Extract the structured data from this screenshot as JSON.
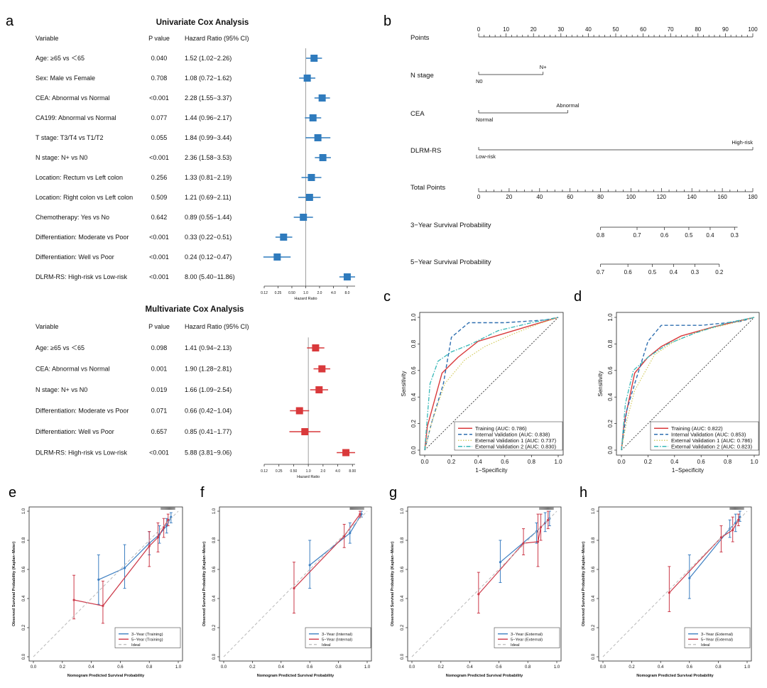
{
  "colors": {
    "univariate": "#2f7bbd",
    "multivariate": "#d9393b",
    "train_line": "#d9393b",
    "internal_line": "#2f6fb0",
    "ext1_line": "#d6cf6a",
    "ext2_line": "#37b8b8",
    "cal3": "#3d7fc2",
    "cal5": "#cc3a4a",
    "ideal": "#b9b9b9"
  },
  "panel_labels": {
    "a": "a",
    "b": "b",
    "c": "c",
    "d": "d",
    "e": "e",
    "f": "f",
    "g": "g",
    "h": "h"
  },
  "chart_data": [
    {
      "id": "a_univariate",
      "type": "forest",
      "title": "Univariate Cox Analysis",
      "headers": {
        "variable": "Variable",
        "p": "P value",
        "hr": "Hazard Ratio (95% CI)"
      },
      "xlabel": "Hazard Ratio",
      "xticks": [
        "0.12",
        "0.25",
        "0.50",
        "1.0",
        "2.0",
        "4.0",
        "8.0"
      ],
      "xtick_values": [
        0.125,
        0.25,
        0.5,
        1,
        2,
        4,
        8
      ],
      "xlim": [
        0.125,
        11.86
      ],
      "log_scale": true,
      "rows": [
        {
          "label": "Age: ≥65 vs ＜65",
          "p": "0.040",
          "hr_text": "1.52 (1.02−2.26)",
          "hr": 1.52,
          "lo": 1.02,
          "hi": 2.26
        },
        {
          "label": "Sex: Male vs Female",
          "p": "0.708",
          "hr_text": "1.08 (0.72−1.62)",
          "hr": 1.08,
          "lo": 0.72,
          "hi": 1.62
        },
        {
          "label": "CEA: Abnormal vs Normal",
          "p": "<0.001",
          "hr_text": "2.28 (1.55−3.37)",
          "hr": 2.28,
          "lo": 1.55,
          "hi": 3.37
        },
        {
          "label": "CA199: Abnormal vs Normal",
          "p": "0.077",
          "hr_text": "1.44 (0.96−2.17)",
          "hr": 1.44,
          "lo": 0.96,
          "hi": 2.17
        },
        {
          "label": "T stage: T3/T4 vs T1/T2",
          "p": "0.055",
          "hr_text": "1.84 (0.99−3.44)",
          "hr": 1.84,
          "lo": 0.99,
          "hi": 3.44
        },
        {
          "label": "N stage: N+ vs N0",
          "p": "<0.001",
          "hr_text": "2.36 (1.58−3.53)",
          "hr": 2.36,
          "lo": 1.58,
          "hi": 3.53
        },
        {
          "label": "Location: Rectum vs Left colon",
          "p": "0.256",
          "hr_text": "1.33 (0.81−2.19)",
          "hr": 1.33,
          "lo": 0.81,
          "hi": 2.19
        },
        {
          "label": "Location: Right colon vs Left colon",
          "p": "0.509",
          "hr_text": "1.21 (0.69−2.11)",
          "hr": 1.21,
          "lo": 0.69,
          "hi": 2.11
        },
        {
          "label": "Chemotherapy: Yes vs No",
          "p": "0.642",
          "hr_text": "0.89 (0.55−1.44)",
          "hr": 0.89,
          "lo": 0.55,
          "hi": 1.44
        },
        {
          "label": "Differentiation: Moderate vs Poor",
          "p": "<0.001",
          "hr_text": "0.33 (0.22−0.51)",
          "hr": 0.33,
          "lo": 0.22,
          "hi": 0.51
        },
        {
          "label": "Differentiation: Well vs Poor",
          "p": "<0.001",
          "hr_text": "0.24 (0.12−0.47)",
          "hr": 0.24,
          "lo": 0.12,
          "hi": 0.47
        },
        {
          "label": "DLRM-RS: High-risk vs Low-risk",
          "p": "<0.001",
          "hr_text": "8.00 (5.40−11.86)",
          "hr": 8.0,
          "lo": 5.4,
          "hi": 11.86
        }
      ]
    },
    {
      "id": "a_multivariate",
      "type": "forest",
      "title": "Multivariate Cox Analysis",
      "headers": {
        "variable": "Variable",
        "p": "P value",
        "hr": "Hazard Ratio (95% CI)"
      },
      "xlabel": "Hazard Ratio",
      "xticks": [
        "0.12",
        "0.25",
        "0.50",
        "1.0",
        "2.0",
        "4.0",
        "8.00"
      ],
      "xtick_values": [
        0.125,
        0.25,
        0.5,
        1,
        2,
        4,
        8
      ],
      "xlim": [
        0.125,
        9.06
      ],
      "log_scale": true,
      "rows": [
        {
          "label": "Age: ≥65 vs ＜65",
          "p": "0.098",
          "hr_text": "1.41 (0.94−2.13)",
          "hr": 1.41,
          "lo": 0.94,
          "hi": 2.13
        },
        {
          "label": "CEA: Abnormal vs Normal",
          "p": "0.001",
          "hr_text": "1.90 (1.28−2.81)",
          "hr": 1.9,
          "lo": 1.28,
          "hi": 2.81
        },
        {
          "label": "N stage: N+ vs N0",
          "p": "0.019",
          "hr_text": "1.66 (1.09−2.54)",
          "hr": 1.66,
          "lo": 1.09,
          "hi": 2.54
        },
        {
          "label": "Differentiation: Moderate vs Poor",
          "p": "0.071",
          "hr_text": "0.66 (0.42−1.04)",
          "hr": 0.66,
          "lo": 0.42,
          "hi": 1.04
        },
        {
          "label": "Differentiation: Well vs Poor",
          "p": "0.657",
          "hr_text": "0.85 (0.41−1.77)",
          "hr": 0.85,
          "lo": 0.41,
          "hi": 1.77
        },
        {
          "label": "DLRM-RS: High-risk vs Low-risk",
          "p": "<0.001",
          "hr_text": "5.88 (3.81−9.06)",
          "hr": 5.88,
          "lo": 3.81,
          "hi": 9.06
        }
      ]
    },
    {
      "id": "b_nomogram",
      "type": "nomogram",
      "points_axis": {
        "label": "Points",
        "range": [
          0,
          100
        ],
        "ticks": [
          "0",
          "10",
          "20",
          "30",
          "40",
          "50",
          "60",
          "70",
          "80",
          "90",
          "100"
        ]
      },
      "variables": [
        {
          "label": "N stage",
          "levels": [
            {
              "name": "N0",
              "points": 0
            },
            {
              "name": "N+",
              "points": 23.5
            }
          ]
        },
        {
          "label": "CEA",
          "levels": [
            {
              "name": "Normal",
              "points": 0
            },
            {
              "name": "Abnormal",
              "points": 32.5
            }
          ]
        },
        {
          "label": "DLRM-RS",
          "levels": [
            {
              "name": "Low-risk",
              "points": 0
            },
            {
              "name": "High-risk",
              "points": 100
            }
          ]
        }
      ],
      "total_axis": {
        "label": "Total Points",
        "range": [
          0,
          180
        ],
        "ticks": [
          "0",
          "20",
          "40",
          "60",
          "80",
          "100",
          "120",
          "140",
          "160",
          "180"
        ]
      },
      "survival_axes": [
        {
          "label": "3−Year Survival Probability",
          "ticks": [
            {
              "text": "0.8",
              "total": 80
            },
            {
              "text": "0.7",
              "total": 104
            },
            {
              "text": "0.6",
              "total": 122
            },
            {
              "text": "0.5",
              "total": 138
            },
            {
              "text": "0.4",
              "total": 152
            },
            {
              "text": "0.3",
              "total": 168
            }
          ],
          "line_range": [
            80,
            170
          ]
        },
        {
          "label": "5−Year Survival Probability",
          "ticks": [
            {
              "text": "0.7",
              "total": 80
            },
            {
              "text": "0.6",
              "total": 98
            },
            {
              "text": "0.5",
              "total": 114
            },
            {
              "text": "0.4",
              "total": 128
            },
            {
              "text": "0.3",
              "total": 142
            },
            {
              "text": "0.2",
              "total": 158
            }
          ],
          "line_range": [
            80,
            158
          ]
        }
      ]
    },
    {
      "id": "c_roc",
      "type": "line",
      "xlabel": "1−Specificity",
      "ylabel": "Sensitivity",
      "xlim": [
        0,
        1
      ],
      "ylim": [
        0,
        1
      ],
      "ticks": [
        "0.0",
        "0.2",
        "0.4",
        "0.6",
        "0.8",
        "1.0"
      ],
      "tick_values": [
        0,
        0.2,
        0.4,
        0.6,
        0.8,
        1.0
      ],
      "legend_position": "bottom-right",
      "series": [
        {
          "name": "Training (AUC: 0.786)",
          "style": "train",
          "x": [
            0,
            0.02,
            0.13,
            0.25,
            0.4,
            0.6,
            0.8,
            1.0
          ],
          "y": [
            0,
            0.18,
            0.58,
            0.7,
            0.82,
            0.88,
            0.94,
            1.0
          ]
        },
        {
          "name": "Internal Validation (AUC: 0.838)",
          "style": "internal",
          "x": [
            0,
            0.05,
            0.14,
            0.2,
            0.33,
            0.6,
            0.9,
            1.0
          ],
          "y": [
            0,
            0.2,
            0.5,
            0.85,
            0.96,
            0.96,
            0.98,
            1.0
          ]
        },
        {
          "name": "External Validation 1 (AUC: 0.737)",
          "style": "ext1",
          "x": [
            0,
            0.05,
            0.15,
            0.3,
            0.45,
            0.65,
            0.85,
            1.0
          ],
          "y": [
            0,
            0.2,
            0.5,
            0.68,
            0.78,
            0.87,
            0.95,
            1.0
          ]
        },
        {
          "name": "External Validation 2 (AUC: 0.830)",
          "style": "ext2",
          "x": [
            0,
            0.04,
            0.1,
            0.2,
            0.35,
            0.55,
            0.8,
            1.0
          ],
          "y": [
            0,
            0.5,
            0.67,
            0.74,
            0.8,
            0.9,
            0.96,
            1.0
          ]
        }
      ]
    },
    {
      "id": "d_roc",
      "type": "line",
      "xlabel": "1−Specificity",
      "ylabel": "Sensitivity",
      "xlim": [
        0,
        1
      ],
      "ylim": [
        0,
        1
      ],
      "ticks": [
        "0.0",
        "0.2",
        "0.4",
        "0.6",
        "0.8",
        "1.0"
      ],
      "tick_values": [
        0,
        0.2,
        0.4,
        0.6,
        0.8,
        1.0
      ],
      "legend_position": "bottom-right",
      "series": [
        {
          "name": "Training (AUC: 0.822)",
          "style": "train",
          "x": [
            0,
            0.02,
            0.1,
            0.2,
            0.3,
            0.45,
            0.7,
            1.0
          ],
          "y": [
            0,
            0.2,
            0.58,
            0.7,
            0.78,
            0.86,
            0.93,
            1.0
          ]
        },
        {
          "name": "Internal Validation (AUC: 0.853)",
          "style": "internal",
          "x": [
            0,
            0.04,
            0.1,
            0.2,
            0.3,
            0.6,
            0.9,
            1.0
          ],
          "y": [
            0,
            0.3,
            0.5,
            0.82,
            0.94,
            0.94,
            0.97,
            1.0
          ]
        },
        {
          "name": "External Validation 1 (AUC: 0.786)",
          "style": "ext1",
          "x": [
            0,
            0.04,
            0.1,
            0.25,
            0.4,
            0.6,
            0.85,
            1.0
          ],
          "y": [
            0,
            0.22,
            0.45,
            0.72,
            0.82,
            0.9,
            0.96,
            1.0
          ]
        },
        {
          "name": "External Validation 2 (AUC: 0.823)",
          "style": "ext2",
          "x": [
            0,
            0.03,
            0.09,
            0.2,
            0.35,
            0.55,
            0.8,
            1.0
          ],
          "y": [
            0,
            0.35,
            0.6,
            0.7,
            0.8,
            0.88,
            0.96,
            1.0
          ]
        }
      ]
    },
    {
      "id": "e_calibration",
      "type": "line",
      "xlabel": "Nomogram Predicted Survival Probability",
      "ylabel": "Observed Survival Probability (Kaplan−Meier)",
      "xlim": [
        0,
        1
      ],
      "ylim": [
        0,
        1
      ],
      "ticks": [
        "0.0",
        "0.2",
        "0.4",
        "0.6",
        "0.8",
        "1.0"
      ],
      "tick_values": [
        0,
        0.2,
        0.4,
        0.6,
        0.8,
        1.0
      ],
      "legend_position": "bottom-right",
      "series": [
        {
          "name": "3−Year (Training)",
          "style": "cal3",
          "x": [
            0.45,
            0.63,
            0.8,
            0.87,
            0.92,
            0.95
          ],
          "y": [
            0.53,
            0.61,
            0.78,
            0.84,
            0.9,
            0.96
          ],
          "lo": [
            0.36,
            0.47,
            0.7,
            0.78,
            0.85,
            0.92
          ],
          "hi": [
            0.7,
            0.77,
            0.86,
            0.9,
            0.95,
            0.99
          ]
        },
        {
          "name": "5−Year (Training)",
          "style": "cal5",
          "x": [
            0.28,
            0.48,
            0.8,
            0.86,
            0.9,
            0.93
          ],
          "y": [
            0.39,
            0.35,
            0.76,
            0.82,
            0.89,
            0.94
          ],
          "lo": [
            0.26,
            0.23,
            0.62,
            0.72,
            0.82,
            0.9
          ],
          "hi": [
            0.56,
            0.52,
            0.86,
            0.92,
            0.95,
            0.98
          ]
        },
        {
          "name": "Ideal",
          "style": "ideal",
          "x": [
            0,
            1
          ],
          "y": [
            0,
            1
          ]
        }
      ]
    },
    {
      "id": "f_calibration",
      "type": "line",
      "xlabel": "Nomogram Predicted Survival Probability",
      "ylabel": "Observed Survival Probability (Kaplan−Meier)",
      "xlim": [
        0,
        1
      ],
      "ylim": [
        0,
        1
      ],
      "ticks": [
        "0.0",
        "0.2",
        "0.4",
        "0.6",
        "0.8",
        "1.0"
      ],
      "tick_values": [
        0,
        0.2,
        0.4,
        0.6,
        0.8,
        1.0
      ],
      "legend_position": "bottom-right",
      "series": [
        {
          "name": "3−Year (Internal)",
          "style": "cal3",
          "x": [
            0.6,
            0.88,
            0.96
          ],
          "y": [
            0.63,
            0.85,
            0.98
          ],
          "lo": [
            0.47,
            0.78,
            0.96
          ],
          "hi": [
            0.8,
            0.92,
            1.0
          ]
        },
        {
          "name": "5−Year (Internal)",
          "style": "cal5",
          "x": [
            0.49,
            0.84,
            0.95
          ],
          "y": [
            0.47,
            0.83,
            0.98
          ],
          "lo": [
            0.3,
            0.75,
            0.96
          ],
          "hi": [
            0.65,
            0.91,
            1.0
          ]
        },
        {
          "name": "Ideal",
          "style": "ideal",
          "x": [
            0,
            1
          ],
          "y": [
            0,
            1
          ]
        }
      ]
    },
    {
      "id": "g_calibration",
      "type": "line",
      "xlabel": "Nomogram Predicted Survival Probability",
      "ylabel": "Observed Survival Probability (Kaplan−Meier)",
      "xlim": [
        0,
        1
      ],
      "ylim": [
        0,
        1
      ],
      "ticks": [
        "0.0",
        "0.2",
        "0.4",
        "0.6",
        "0.8",
        "1.0"
      ],
      "tick_values": [
        0,
        0.2,
        0.4,
        0.6,
        0.8,
        1.0
      ],
      "legend_position": "bottom-right",
      "series": [
        {
          "name": "3−Year (External)",
          "style": "cal3",
          "x": [
            0.61,
            0.86,
            0.92,
            0.95
          ],
          "y": [
            0.65,
            0.86,
            0.92,
            0.95
          ],
          "lo": [
            0.51,
            0.78,
            0.86,
            0.9
          ],
          "hi": [
            0.8,
            0.92,
            0.99,
            1.0
          ]
        },
        {
          "name": "5−Year (External)",
          "style": "cal5",
          "x": [
            0.46,
            0.77,
            0.87,
            0.89,
            0.94
          ],
          "y": [
            0.43,
            0.78,
            0.79,
            0.89,
            0.94
          ],
          "lo": [
            0.3,
            0.7,
            0.62,
            0.8,
            0.88
          ],
          "hi": [
            0.58,
            0.88,
            0.98,
            0.98,
            1.0
          ]
        },
        {
          "name": "Ideal",
          "style": "ideal",
          "x": [
            0,
            1
          ],
          "y": [
            0,
            1
          ]
        }
      ]
    },
    {
      "id": "h_calibration",
      "type": "line",
      "xlabel": "Nomogram Predicted Survival Probability",
      "ylabel": "Observed Survival Probability (Kaplan−Meier)",
      "xlim": [
        0,
        1
      ],
      "ylim": [
        0,
        1
      ],
      "ticks": [
        "0.0",
        "0.2",
        "0.4",
        "0.6",
        "0.8",
        "1.0"
      ],
      "tick_values": [
        0,
        0.2,
        0.4,
        0.6,
        0.8,
        1.0
      ],
      "legend_position": "bottom-right",
      "series": [
        {
          "name": "3−Year (External)",
          "style": "cal3",
          "x": [
            0.6,
            0.88,
            0.92,
            0.95
          ],
          "y": [
            0.54,
            0.88,
            0.92,
            0.96
          ],
          "lo": [
            0.4,
            0.82,
            0.86,
            0.93
          ],
          "hi": [
            0.7,
            0.94,
            0.98,
            1.0
          ]
        },
        {
          "name": "5−Year (External)",
          "style": "cal5",
          "x": [
            0.46,
            0.82,
            0.9,
            0.94
          ],
          "y": [
            0.44,
            0.82,
            0.87,
            0.94
          ],
          "lo": [
            0.31,
            0.72,
            0.79,
            0.9
          ],
          "hi": [
            0.62,
            0.9,
            0.96,
            0.98
          ]
        },
        {
          "name": "Ideal",
          "style": "ideal",
          "x": [
            0,
            1
          ],
          "y": [
            0,
            1
          ]
        }
      ]
    }
  ]
}
